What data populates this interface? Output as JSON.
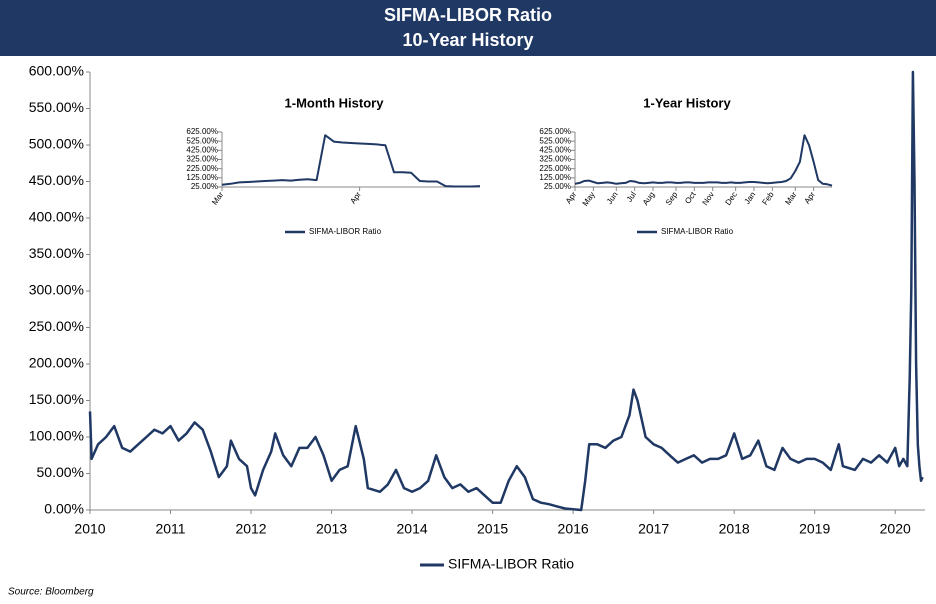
{
  "chart_data": [
    {
      "type": "line",
      "title": "SIFMA-LIBOR Ratio",
      "subtitle": "10-Year History",
      "source": "Source: Bloomberg",
      "x": [
        2010.0,
        2010.02,
        2010.1,
        2010.2,
        2010.3,
        2010.4,
        2010.5,
        2010.6,
        2010.7,
        2010.8,
        2010.9,
        2011.0,
        2011.1,
        2011.2,
        2011.3,
        2011.4,
        2011.5,
        2011.6,
        2011.7,
        2011.75,
        2011.85,
        2011.95,
        2012.0,
        2012.05,
        2012.15,
        2012.25,
        2012.3,
        2012.4,
        2012.5,
        2012.6,
        2012.7,
        2012.8,
        2012.9,
        2013.0,
        2013.1,
        2013.2,
        2013.3,
        2013.4,
        2013.45,
        2013.6,
        2013.7,
        2013.8,
        2013.9,
        2014.0,
        2014.1,
        2014.2,
        2014.3,
        2014.4,
        2014.5,
        2014.6,
        2014.7,
        2014.8,
        2014.9,
        2015.0,
        2015.1,
        2015.2,
        2015.3,
        2015.4,
        2015.5,
        2015.6,
        2015.7,
        2015.8,
        2015.9,
        2016.0,
        2016.1,
        2016.15,
        2016.2,
        2016.3,
        2016.4,
        2016.5,
        2016.6,
        2016.7,
        2016.75,
        2016.8,
        2016.9,
        2017.0,
        2017.1,
        2017.2,
        2017.3,
        2017.4,
        2017.5,
        2017.6,
        2017.7,
        2017.8,
        2017.9,
        2018.0,
        2018.1,
        2018.2,
        2018.3,
        2018.4,
        2018.5,
        2018.6,
        2018.7,
        2018.8,
        2018.9,
        2019.0,
        2019.1,
        2019.2,
        2019.3,
        2019.35,
        2019.5,
        2019.6,
        2019.7,
        2019.8,
        2019.9,
        2020.0,
        2020.05,
        2020.1,
        2020.15,
        2020.18,
        2020.2,
        2020.22,
        2020.24,
        2020.26,
        2020.28,
        2020.3,
        2020.32,
        2020.34
      ],
      "series": [
        {
          "name": "SIFMA-LIBOR Ratio",
          "color": "#1f3864",
          "values": [
            135,
            70,
            90,
            100,
            115,
            85,
            80,
            90,
            100,
            110,
            105,
            115,
            95,
            105,
            120,
            110,
            80,
            45,
            60,
            95,
            70,
            60,
            30,
            20,
            55,
            80,
            105,
            75,
            60,
            85,
            85,
            100,
            75,
            40,
            55,
            60,
            115,
            70,
            30,
            25,
            35,
            55,
            30,
            25,
            30,
            40,
            75,
            45,
            30,
            35,
            25,
            30,
            20,
            10,
            10,
            40,
            60,
            45,
            15,
            10,
            8,
            5,
            2,
            1,
            0,
            40,
            90,
            90,
            85,
            95,
            100,
            130,
            165,
            150,
            100,
            90,
            85,
            75,
            65,
            70,
            75,
            65,
            70,
            70,
            75,
            105,
            70,
            75,
            95,
            60,
            55,
            85,
            70,
            65,
            70,
            70,
            65,
            55,
            90,
            60,
            55,
            70,
            65,
            75,
            65,
            85,
            60,
            70,
            60,
            180,
            300,
            600,
            450,
            200,
            90,
            60,
            40,
            45
          ]
        }
      ],
      "xlim": [
        2010,
        2020.37
      ],
      "xticks": [
        2010,
        2011,
        2012,
        2013,
        2014,
        2015,
        2016,
        2017,
        2018,
        2019,
        2020
      ],
      "ylim": [
        0,
        600
      ],
      "yticks": [
        {
          "value": 0,
          "label": "0.00%"
        },
        {
          "value": 50,
          "label": "50.00%"
        },
        {
          "value": 100,
          "label": "100.00%"
        },
        {
          "value": 150,
          "label": "150.00%"
        },
        {
          "value": 200,
          "label": "200.00%"
        },
        {
          "value": 250,
          "label": "250.00%"
        },
        {
          "value": 300,
          "label": "300.00%"
        },
        {
          "value": 350,
          "label": "350.00%"
        },
        {
          "value": 400,
          "label": "400.00%"
        },
        {
          "value": 450,
          "label": "450.00%"
        },
        {
          "value": 500,
          "label": "500.00%"
        },
        {
          "value": 550,
          "label": "550.00%"
        },
        {
          "value": 600,
          "label": "600.00%"
        }
      ]
    },
    {
      "type": "line",
      "title": "1-Month History",
      "series": [
        {
          "name": "SIFMA-LIBOR Ratio",
          "color": "#1f3864",
          "values": [
            50,
            60,
            75,
            80,
            85,
            90,
            95,
            100,
            95,
            105,
            110,
            100,
            590,
            520,
            510,
            505,
            500,
            495,
            490,
            480,
            185,
            185,
            180,
            90,
            85,
            85,
            35,
            30,
            30,
            30,
            35
          ]
        }
      ],
      "xlim": [
        0,
        30
      ],
      "xticks": [
        {
          "value": 0,
          "label": "Mar"
        },
        {
          "value": 16,
          "label": "Apr"
        }
      ],
      "ylim": [
        25,
        625
      ],
      "yticks": [
        {
          "value": 25,
          "label": "25.00%"
        },
        {
          "value": 125,
          "label": "125.00%"
        },
        {
          "value": 225,
          "label": "225.00%"
        },
        {
          "value": 325,
          "label": "325.00%"
        },
        {
          "value": 425,
          "label": "425.00%"
        },
        {
          "value": 525,
          "label": "525.00%"
        },
        {
          "value": 625,
          "label": "625.00%"
        }
      ]
    },
    {
      "type": "line",
      "title": "1-Year History",
      "series": [
        {
          "name": "SIFMA-LIBOR Ratio",
          "color": "#1f3864",
          "values": [
            60,
            70,
            90,
            95,
            80,
            65,
            70,
            75,
            70,
            60,
            65,
            70,
            90,
            85,
            70,
            65,
            70,
            75,
            70,
            70,
            75,
            75,
            70,
            70,
            75,
            75,
            70,
            70,
            70,
            75,
            75,
            75,
            70,
            70,
            75,
            70,
            70,
            75,
            80,
            80,
            75,
            70,
            65,
            70,
            75,
            80,
            90,
            120,
            200,
            300,
            590,
            480,
            300,
            100,
            60,
            55,
            40
          ]
        }
      ],
      "xlim": [
        0,
        56
      ],
      "xticks": [
        {
          "value": 0,
          "label": "Apr"
        },
        {
          "value": 4,
          "label": "May"
        },
        {
          "value": 9,
          "label": "Jun"
        },
        {
          "value": 13,
          "label": "Jul"
        },
        {
          "value": 17,
          "label": "Aug"
        },
        {
          "value": 22,
          "label": "Sep"
        },
        {
          "value": 26,
          "label": "Oct"
        },
        {
          "value": 30,
          "label": "Nov"
        },
        {
          "value": 35,
          "label": "Dec"
        },
        {
          "value": 39,
          "label": "Jan"
        },
        {
          "value": 43,
          "label": "Feb"
        },
        {
          "value": 48,
          "label": "Mar"
        },
        {
          "value": 52,
          "label": "Apr"
        }
      ],
      "ylim": [
        25,
        625
      ],
      "yticks": [
        {
          "value": 25,
          "label": "25.00%"
        },
        {
          "value": 125,
          "label": "125.00%"
        },
        {
          "value": 225,
          "label": "225.00%"
        },
        {
          "value": 325,
          "label": "325.00%"
        },
        {
          "value": 425,
          "label": "425.00%"
        },
        {
          "value": 525,
          "label": "525.00%"
        },
        {
          "value": 625,
          "label": "625.00%"
        }
      ]
    }
  ]
}
